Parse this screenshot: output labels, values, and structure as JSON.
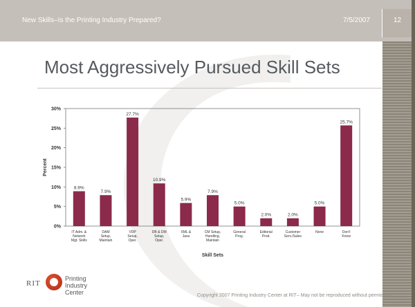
{
  "header": {
    "title": "New Skills–Is the Printing Industry Prepared?",
    "date": "7/5/2007",
    "slide_number": "12"
  },
  "slide": {
    "title": "Most Aggressively Pursued Skill Sets"
  },
  "footer": {
    "logo_rit": "RIT",
    "logo_lines": [
      "Printing",
      "Industry",
      "Center"
    ],
    "copyright": "Copyright 2007 Printing Industry Center at RIT– May not be reproduced without permission."
  },
  "chart_data": {
    "type": "bar",
    "categories": [
      [
        "IT Adm. &",
        "Network",
        "Mgt. Skills"
      ],
      [
        "DAM",
        "Setup,",
        "Maintain"
      ],
      [
        "VDP",
        "Setup,",
        "Oper."
      ],
      [
        "DB & DM",
        "Setup,",
        "Oper."
      ],
      [
        "XML &",
        "Java"
      ],
      [
        "CM Setup,",
        "Handling,",
        "Maintain"
      ],
      [
        "General",
        "Prog."
      ],
      [
        "Editorial",
        "Prod."
      ],
      [
        "Customer",
        "Serv./Sales"
      ],
      [
        "None"
      ],
      [
        "Don't",
        "Know"
      ]
    ],
    "values": [
      8.9,
      7.9,
      27.7,
      10.9,
      5.9,
      7.9,
      5.0,
      2.0,
      2.0,
      5.0,
      25.7
    ],
    "value_labels": [
      "8.9%",
      "7.9%",
      "27.7%",
      "10.9%",
      "5.9%",
      "7.9%",
      "5.0%",
      "2.0%",
      "2.0%",
      "5.0%",
      "25.7%"
    ],
    "ylim": [
      0,
      30
    ],
    "yticks": [
      "0%",
      "5%",
      "10%",
      "15%",
      "20%",
      "25%",
      "30%"
    ],
    "xlabel": "Skill Sets",
    "ylabel": "Percent",
    "bar_color": "#8b2a4a",
    "grid": false,
    "legend": false
  }
}
